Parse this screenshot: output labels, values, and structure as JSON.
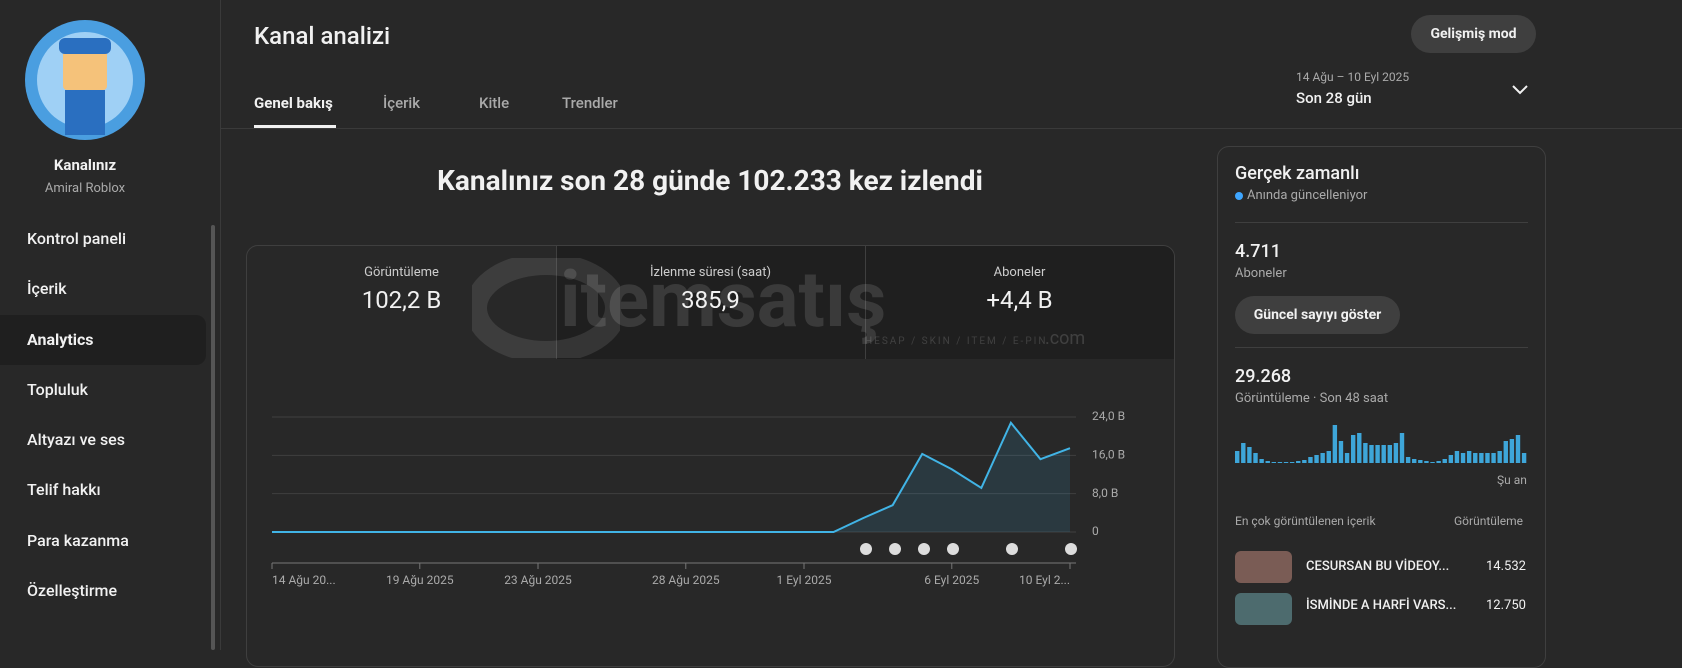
{
  "sidebar": {
    "channel_label": "Kanalınız",
    "channel_name": "Amiral Roblox",
    "items": [
      "Kontrol paneli",
      "İçerik",
      "Analytics",
      "Topluluk",
      "Altyazı ve ses",
      "Telif hakkı",
      "Para kazanma",
      "Özelleştirme"
    ]
  },
  "header": {
    "title": "Kanal analizi",
    "tabs": [
      "Genel bakış",
      "İçerik",
      "Kitle",
      "Trendler"
    ],
    "advanced_button": "Gelişmiş mod",
    "date_range": "14 Ağu – 10 Eyl 2025",
    "period": "Son 28 gün"
  },
  "headline": "Kanalınız son 28 günde 102.233 kez izlendi",
  "metrics": [
    {
      "label": "Görüntüleme",
      "value": "102,2 B"
    },
    {
      "label": "İzlenme süresi (saat)",
      "value": "385,9"
    },
    {
      "label": "Aboneler",
      "value": "+4,4 B"
    }
  ],
  "watermark": {
    "brand": "itemsatış",
    "tagline": "HESAP / SKIN / ITEM / E-PIN",
    "suffix": ".com"
  },
  "chart_data": [
    {
      "type": "line",
      "color": "#41b4e6",
      "categories": [
        "14 Ağu 20...",
        null,
        null,
        null,
        null,
        "19 Ağu 2025",
        null,
        null,
        null,
        "23 Ağu 2025",
        null,
        null,
        null,
        null,
        "28 Ağu 2025",
        null,
        null,
        null,
        "1 Eyl 2025",
        null,
        null,
        null,
        null,
        "6 Eyl 2025",
        null,
        null,
        null,
        "10 Eyl 2..."
      ],
      "values": [
        0,
        0,
        0,
        0,
        0,
        0,
        0,
        0,
        0,
        0,
        0,
        0,
        0,
        0,
        0,
        0,
        0,
        0,
        0,
        0,
        2.9,
        5.6,
        16.3,
        13.1,
        9.2,
        22.8,
        15.2,
        17.5
      ],
      "ylim": [
        0,
        24
      ],
      "yticks": [
        0,
        {
          "value": 8,
          "label": "8,0 B"
        },
        {
          "value": 16,
          "label": "16,0 B"
        },
        {
          "value": 24,
          "label": "24,0 B"
        }
      ],
      "grid": true
    },
    {
      "type": "bar",
      "color": "#3ea6d9",
      "ylim": [
        0,
        40
      ],
      "values": [
        12,
        20,
        16,
        10,
        4,
        2,
        1,
        1,
        1,
        1,
        2,
        3,
        6,
        8,
        10,
        12,
        38,
        22,
        10,
        28,
        30,
        20,
        18,
        18,
        18,
        18,
        20,
        30,
        6,
        4,
        3,
        2,
        1,
        2,
        4,
        8,
        12,
        10,
        12,
        10,
        10,
        10,
        10,
        12,
        22,
        24,
        28,
        10
      ]
    }
  ],
  "realtime": {
    "title": "Gerçek zamanlı",
    "status": "Anında güncelleniyor",
    "subscribers": "4.711",
    "subscribers_label": "Aboneler",
    "show_button": "Güncel sayıyı göster",
    "views": "29.268",
    "views_label": "Görüntüleme · Son 48 saat",
    "now_label": "Şu an",
    "top_content_label": "En çok görüntülenen içerik",
    "top_content_metric": "Görüntüleme",
    "top_content": [
      {
        "title": "CESURSAN BU VİDEOY...",
        "views": "14.532"
      },
      {
        "title": "İSMİNDE A HARFİ VARS...",
        "views": "12.750"
      }
    ]
  }
}
